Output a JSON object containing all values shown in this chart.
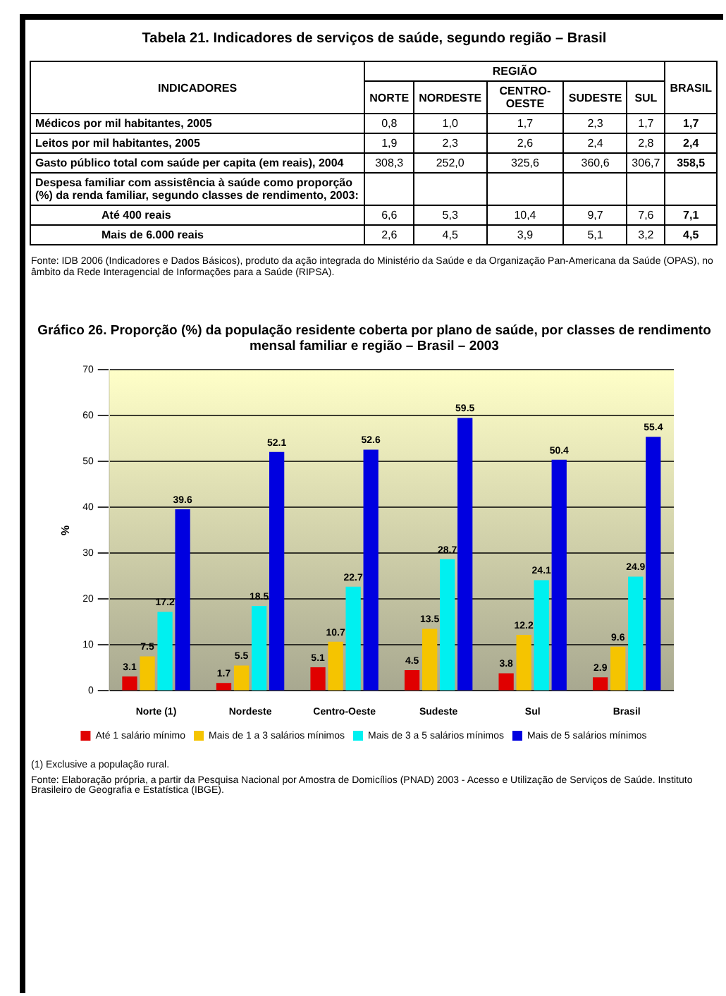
{
  "chart_data": [
    {
      "type": "other",
      "title": "Tabela 21. Indicadores de serviços de saúde, segundo região – Brasil",
      "xlabel": "REGIÃO",
      "ylabel": "INDICADORES",
      "categories": [
        "NORTE",
        "NORDESTE",
        "CENTRO-OESTE",
        "SUDESTE",
        "SUL",
        "BRASIL"
      ],
      "series": [
        {
          "name": "Médicos por mil habitantes, 2005",
          "values": [
            0.8,
            1.0,
            1.7,
            2.3,
            1.7,
            1.7
          ],
          "value_labels": [
            "0,8",
            "1,0",
            "1,7",
            "2,3",
            "1,7",
            "1,7"
          ]
        },
        {
          "name": "Leitos por mil habitantes, 2005",
          "values": [
            1.9,
            2.3,
            2.6,
            2.4,
            2.8,
            2.4
          ],
          "value_labels": [
            "1,9",
            "2,3",
            "2,6",
            "2,4",
            "2,8",
            "2,4"
          ]
        },
        {
          "name": "Gasto público total com saúde per capita (em reais), 2004",
          "values": [
            308.3,
            252.0,
            325.6,
            360.6,
            306.7,
            358.5
          ],
          "value_labels": [
            "308,3",
            "252,0",
            "325,6",
            "360,6",
            "306,7",
            "358,5"
          ]
        },
        {
          "name": "Até 400 reais",
          "values": [
            6.6,
            5.3,
            10.4,
            9.7,
            7.6,
            7.1
          ],
          "value_labels": [
            "6,6",
            "5,3",
            "10,4",
            "9,7",
            "7,6",
            "7,1"
          ]
        },
        {
          "name": "Mais de 6.000 reais",
          "values": [
            2.6,
            4.5,
            3.9,
            5.1,
            3.2,
            4.5
          ],
          "value_labels": [
            "2,6",
            "4,5",
            "3,9",
            "5,1",
            "3,2",
            "4,5"
          ]
        }
      ],
      "annotations": [
        "Despesa familiar com assistência à saúde como proporção (%) da renda familiar, segundo classes de rendimento, 2003:",
        "Fonte: IDB 2006 (Indicadores e Dados Básicos), produto da ação integrada do Ministério da Saúde e da Organização Pan-Americana da Saúde (OPAS), no âmbito da Rede Interagencial de Informações para a Saúde (RIPSA)."
      ]
    },
    {
      "type": "bar",
      "title": "Gráfico 26. Proporção (%) da população residente coberta por plano de saúde, por classes de rendimento mensal familiar e região –  Brasil –  2003",
      "ylabel": "%",
      "categories": [
        "Norte (1)",
        "Nordeste",
        "Centro-Oeste",
        "Sudeste",
        "Sul",
        "Brasil"
      ],
      "series": [
        {
          "name": "Até 1 salário mínimo",
          "color": "#e00000",
          "values": [
            3.1,
            1.7,
            5.1,
            4.5,
            3.8,
            2.9
          ]
        },
        {
          "name": "Mais de 1 a 3 salários mínimos",
          "color": "#f5c400",
          "values": [
            7.5,
            5.5,
            10.7,
            13.5,
            12.2,
            9.6
          ]
        },
        {
          "name": "Mais de 3 a 5 salários mínimos",
          "color": "#00f0f0",
          "values": [
            17.2,
            18.5,
            22.7,
            28.7,
            24.1,
            24.9
          ]
        },
        {
          "name": "Mais de 5 salários mínimos",
          "color": "#0000e0",
          "values": [
            39.6,
            52.1,
            52.6,
            59.5,
            50.4,
            55.4
          ]
        }
      ],
      "ylim": [
        0,
        70
      ],
      "yticks": [
        0,
        10,
        20,
        30,
        40,
        50,
        60,
        70
      ],
      "grid": "y",
      "legend": "bottom",
      "data_labels": true,
      "annotations": [
        "(1) Exclusive a população rural.",
        "Fonte: Elaboração própria, a partir da Pesquisa Nacional por Amostra de Domicílios (PNAD) 2003 - Acesso e Utilização de Serviços de Saúde. Instituto Brasileiro de Geografia e Estatística (IBGE)."
      ]
    }
  ]
}
